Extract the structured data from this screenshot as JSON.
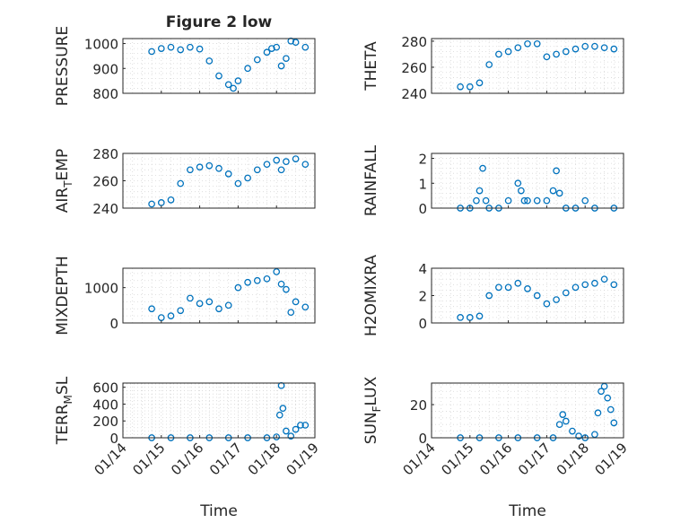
{
  "figure": {
    "title": "Figure 2 low",
    "xlabel": "Time",
    "date_ticks": [
      "01/14",
      "01/15",
      "01/16",
      "01/17",
      "01/18",
      "01/19"
    ],
    "marker_color": "#0072bd",
    "axis_color": "#262626",
    "grid_color": "#d9d9d9"
  },
  "chart_data": [
    {
      "type": "scatter",
      "ylabel": "PRESSURE",
      "ylim": [
        800,
        1020
      ],
      "yticks": [
        800,
        900,
        1000
      ],
      "grid": true,
      "x": [
        "01/14 18:00",
        "01/15 00:00",
        "01/15 06:00",
        "01/15 12:00",
        "01/15 18:00",
        "01/16 00:00",
        "01/16 06:00",
        "01/16 12:00",
        "01/16 18:00",
        "01/16 21:00",
        "01/17 00:00",
        "01/17 06:00",
        "01/17 12:00",
        "01/17 18:00",
        "01/17 21:00",
        "01/18 00:00",
        "01/18 03:00",
        "01/18 06:00",
        "01/18 09:00",
        "01/18 12:00",
        "01/18 18:00"
      ],
      "y": [
        968,
        980,
        985,
        975,
        985,
        978,
        930,
        870,
        835,
        820,
        850,
        900,
        935,
        965,
        980,
        985,
        910,
        940,
        1010,
        1005,
        985
      ]
    },
    {
      "type": "scatter",
      "ylabel": "THETA",
      "ylim": [
        240,
        282
      ],
      "yticks": [
        240,
        260,
        280
      ],
      "grid": true,
      "x": [
        "01/14 18:00",
        "01/15 00:00",
        "01/15 06:00",
        "01/15 12:00",
        "01/15 18:00",
        "01/16 00:00",
        "01/16 06:00",
        "01/16 12:00",
        "01/16 18:00",
        "01/17 00:00",
        "01/17 06:00",
        "01/17 12:00",
        "01/17 18:00",
        "01/18 00:00",
        "01/18 06:00",
        "01/18 12:00",
        "01/18 18:00"
      ],
      "y": [
        245,
        245,
        248,
        262,
        270,
        272,
        275,
        278,
        278,
        268,
        270,
        272,
        274,
        276,
        276,
        275,
        274
      ]
    },
    {
      "type": "scatter",
      "ylabel": "AIR_TEMP",
      "ylim": [
        240,
        280
      ],
      "yticks": [
        240,
        260,
        280
      ],
      "grid": true,
      "x": [
        "01/14 18:00",
        "01/15 00:00",
        "01/15 06:00",
        "01/15 12:00",
        "01/15 18:00",
        "01/16 00:00",
        "01/16 06:00",
        "01/16 12:00",
        "01/16 18:00",
        "01/17 00:00",
        "01/17 06:00",
        "01/17 12:00",
        "01/17 18:00",
        "01/18 00:00",
        "01/18 03:00",
        "01/18 06:00",
        "01/18 12:00",
        "01/18 18:00"
      ],
      "y": [
        243,
        244,
        246,
        258,
        268,
        270,
        271,
        269,
        265,
        258,
        262,
        268,
        272,
        275,
        268,
        274,
        276,
        272
      ]
    },
    {
      "type": "scatter",
      "ylabel": "RAINFALL",
      "ylim": [
        0,
        2.2
      ],
      "yticks": [
        0,
        1,
        2
      ],
      "grid": true,
      "x": [
        "01/14 18:00",
        "01/15 00:00",
        "01/15 04:00",
        "01/15 06:00",
        "01/15 08:00",
        "01/15 10:00",
        "01/15 12:00",
        "01/15 18:00",
        "01/16 00:00",
        "01/16 06:00",
        "01/16 08:00",
        "01/16 10:00",
        "01/16 12:00",
        "01/16 18:00",
        "01/17 00:00",
        "01/17 04:00",
        "01/17 06:00",
        "01/17 08:00",
        "01/17 12:00",
        "01/17 18:00",
        "01/18 00:00",
        "01/18 06:00",
        "01/18 18:00"
      ],
      "y": [
        0,
        0,
        0.3,
        0.7,
        1.6,
        0.3,
        0,
        0,
        0.3,
        1.0,
        0.7,
        0.3,
        0.3,
        0.3,
        0.3,
        0.7,
        1.5,
        0.6,
        0,
        0,
        0.3,
        0,
        0
      ]
    },
    {
      "type": "scatter",
      "ylabel": "MIXDEPTH",
      "ylim": [
        0,
        1550
      ],
      "yticks": [
        0,
        1000
      ],
      "grid": true,
      "x": [
        "01/14 18:00",
        "01/15 00:00",
        "01/15 06:00",
        "01/15 12:00",
        "01/15 18:00",
        "01/16 00:00",
        "01/16 06:00",
        "01/16 12:00",
        "01/16 18:00",
        "01/17 00:00",
        "01/17 06:00",
        "01/17 12:00",
        "01/17 18:00",
        "01/18 00:00",
        "01/18 03:00",
        "01/18 06:00",
        "01/18 09:00",
        "01/18 12:00",
        "01/18 18:00"
      ],
      "y": [
        400,
        150,
        200,
        350,
        700,
        550,
        600,
        400,
        500,
        1000,
        1150,
        1200,
        1250,
        1450,
        1100,
        950,
        300,
        600,
        450
      ]
    },
    {
      "type": "scatter",
      "ylabel": "H2OMIXRA",
      "ylim": [
        0,
        4
      ],
      "yticks": [
        0,
        2,
        4
      ],
      "grid": true,
      "x": [
        "01/14 18:00",
        "01/15 00:00",
        "01/15 06:00",
        "01/15 12:00",
        "01/15 18:00",
        "01/16 00:00",
        "01/16 06:00",
        "01/16 12:00",
        "01/16 18:00",
        "01/17 00:00",
        "01/17 06:00",
        "01/17 12:00",
        "01/17 18:00",
        "01/18 00:00",
        "01/18 06:00",
        "01/18 12:00",
        "01/18 18:00"
      ],
      "y": [
        0.4,
        0.4,
        0.5,
        2.0,
        2.6,
        2.6,
        2.9,
        2.5,
        2.0,
        1.4,
        1.7,
        2.2,
        2.6,
        2.8,
        2.9,
        3.2,
        2.8
      ]
    },
    {
      "type": "scatter",
      "ylabel": "TERR_MSL",
      "ylim": [
        0,
        650
      ],
      "yticks": [
        0,
        200,
        400,
        600
      ],
      "grid": true,
      "x": [
        "01/14 18:00",
        "01/15 06:00",
        "01/15 18:00",
        "01/16 06:00",
        "01/16 18:00",
        "01/17 06:00",
        "01/17 18:00",
        "01/18 00:00",
        "01/18 02:00",
        "01/18 03:00",
        "01/18 04:00",
        "01/18 06:00",
        "01/18 09:00",
        "01/18 12:00",
        "01/18 15:00",
        "01/18 18:00"
      ],
      "y": [
        0,
        0,
        0,
        0,
        0,
        0,
        0,
        10,
        270,
        620,
        350,
        80,
        20,
        100,
        150,
        150
      ]
    },
    {
      "type": "scatter",
      "ylabel": "SUN_FLUX",
      "ylim": [
        0,
        33
      ],
      "yticks": [
        0,
        20
      ],
      "grid": true,
      "x": [
        "01/14 18:00",
        "01/15 06:00",
        "01/15 18:00",
        "01/16 06:00",
        "01/16 18:00",
        "01/17 04:00",
        "01/17 08:00",
        "01/17 10:00",
        "01/17 12:00",
        "01/17 16:00",
        "01/17 20:00",
        "01/18 00:00",
        "01/18 06:00",
        "01/18 08:00",
        "01/18 10:00",
        "01/18 12:00",
        "01/18 14:00",
        "01/18 16:00",
        "01/18 18:00"
      ],
      "y": [
        0,
        0,
        0,
        0,
        0,
        0,
        8,
        14,
        10,
        4,
        1,
        0,
        2,
        15,
        28,
        31,
        24,
        17,
        9
      ]
    }
  ]
}
